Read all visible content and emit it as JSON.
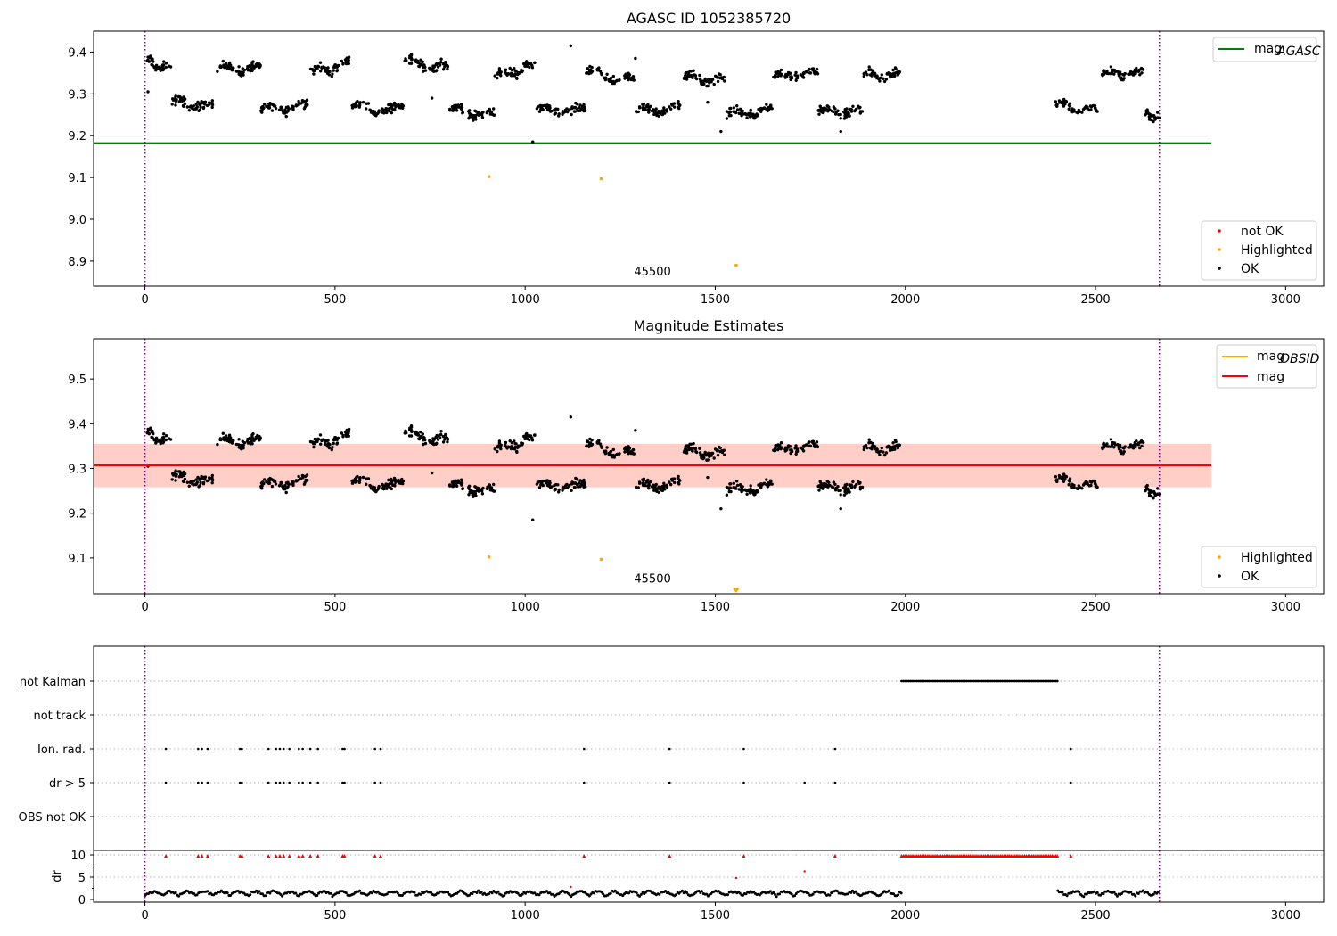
{
  "chart_data": [
    {
      "type": "scatter",
      "title": "AGASC ID 1052385720",
      "xlim": [
        -135,
        3100
      ],
      "ylim": [
        8.84,
        9.45
      ],
      "xticks": [
        0,
        500,
        1000,
        1500,
        2000,
        2500,
        3000
      ],
      "yticks": [
        8.9,
        9.0,
        9.1,
        9.2,
        9.3,
        9.4
      ],
      "vlines": [
        0,
        2668
      ],
      "hlines": [
        {
          "name": "mag_AGASC",
          "y": 9.182,
          "x_end": 2805,
          "color": "#008000"
        }
      ],
      "annotation": {
        "text": "45500",
        "x": 1335,
        "y": 8.866
      },
      "clusters": [
        {
          "x0": 0,
          "x1": 70,
          "y0": 9.375,
          "y1": 9.36,
          "n": 40
        },
        {
          "x0": 70,
          "x1": 180,
          "y0": 9.28,
          "y1": 9.27,
          "n": 60
        },
        {
          "x0": 190,
          "x1": 305,
          "y0": 9.36,
          "y1": 9.36,
          "n": 65
        },
        {
          "x0": 305,
          "x1": 430,
          "y0": 9.265,
          "y1": 9.27,
          "n": 65
        },
        {
          "x0": 435,
          "x1": 540,
          "y0": 9.35,
          "y1": 9.375,
          "n": 60
        },
        {
          "x0": 540,
          "x1": 680,
          "y0": 9.27,
          "y1": 9.26,
          "n": 75
        },
        {
          "x0": 680,
          "x1": 800,
          "y0": 9.38,
          "y1": 9.36,
          "n": 65
        },
        {
          "x0": 800,
          "x1": 920,
          "y0": 9.26,
          "y1": 9.25,
          "n": 65
        },
        {
          "x0": 920,
          "x1": 1030,
          "y0": 9.34,
          "y1": 9.37,
          "n": 60
        },
        {
          "x0": 1030,
          "x1": 1160,
          "y0": 9.26,
          "y1": 9.26,
          "n": 70
        },
        {
          "x0": 1160,
          "x1": 1290,
          "y0": 9.35,
          "y1": 9.33,
          "n": 70
        },
        {
          "x0": 1290,
          "x1": 1410,
          "y0": 9.26,
          "y1": 9.265,
          "n": 65
        },
        {
          "x0": 1415,
          "x1": 1530,
          "y0": 9.34,
          "y1": 9.33,
          "n": 60
        },
        {
          "x0": 1530,
          "x1": 1650,
          "y0": 9.25,
          "y1": 9.26,
          "n": 65
        },
        {
          "x0": 1650,
          "x1": 1770,
          "y0": 9.34,
          "y1": 9.35,
          "n": 60
        },
        {
          "x0": 1770,
          "x1": 1890,
          "y0": 9.26,
          "y1": 9.255,
          "n": 65
        },
        {
          "x0": 1890,
          "x1": 1985,
          "y0": 9.345,
          "y1": 9.345,
          "n": 55
        },
        {
          "x0": 2395,
          "x1": 2505,
          "y0": 9.275,
          "y1": 9.26,
          "n": 55
        },
        {
          "x0": 2515,
          "x1": 2630,
          "y0": 9.345,
          "y1": 9.35,
          "n": 60
        },
        {
          "x0": 2630,
          "x1": 2668,
          "y0": 9.25,
          "y1": 9.24,
          "n": 25
        }
      ],
      "outliers": [
        {
          "x": 8,
          "y": 9.305
        },
        {
          "x": 1020,
          "y": 9.185
        },
        {
          "x": 1120,
          "y": 9.415
        },
        {
          "x": 1290,
          "y": 9.385
        },
        {
          "x": 1515,
          "y": 9.21
        },
        {
          "x": 1830,
          "y": 9.21
        },
        {
          "x": 755,
          "y": 9.29
        },
        {
          "x": 1480,
          "y": 9.28
        }
      ],
      "highlighted": [
        {
          "x": 905,
          "y": 9.102
        },
        {
          "x": 1200,
          "y": 9.097
        },
        {
          "x": 1555,
          "y": 8.89
        }
      ],
      "series": [
        {
          "name": "not OK",
          "color": "#ff0000"
        },
        {
          "name": "Highlighted",
          "color": "#ffa500"
        },
        {
          "name": "OK",
          "color": "#000000"
        }
      ],
      "legend": {
        "position": "top-right",
        "line_label": "mag",
        "line_sub": "AGASC",
        "line_color": "#008000"
      }
    },
    {
      "type": "scatter",
      "title": "Magnitude Estimates",
      "xlim": [
        -135,
        3100
      ],
      "ylim": [
        9.02,
        9.59
      ],
      "xticks": [
        0,
        500,
        1000,
        1500,
        2000,
        2500,
        3000
      ],
      "yticks": [
        9.1,
        9.2,
        9.3,
        9.4,
        9.5
      ],
      "vlines": [
        0,
        2668
      ],
      "mag": {
        "y": 9.307,
        "band": [
          9.258,
          9.355
        ],
        "x_end": 2805,
        "color": "#ff0000"
      },
      "mag_obsid": {
        "color": "#ffa500"
      },
      "annotation": {
        "text": "45500",
        "x": 1335,
        "y": 9.045
      },
      "highlighted": [
        {
          "x": 905,
          "y": 9.102
        },
        {
          "x": 1200,
          "y": 9.097
        }
      ],
      "marker_at_edge": {
        "x": 1555,
        "y": 9.026
      },
      "series": [
        {
          "name": "Highlighted",
          "color": "#ffa500"
        },
        {
          "name": "OK",
          "color": "#000000"
        }
      ],
      "legend": {
        "position": "top-right",
        "line1_label": "mag",
        "line1_sub": "OBSID",
        "line2_label": "mag"
      }
    },
    {
      "type": "scatter",
      "title": "",
      "xlim": [
        -135,
        3100
      ],
      "categories": [
        "not Kalman",
        "not track",
        "Ion. rad.",
        "dr > 5",
        "OBS not OK"
      ],
      "flag_spans": [
        {
          "category": "not Kalman",
          "x0": 1990,
          "x1": 2400
        }
      ],
      "flag_points": {
        "Ion. rad.": [
          55,
          140,
          150,
          165,
          250,
          255,
          325,
          345,
          355,
          365,
          380,
          405,
          415,
          435,
          455,
          520,
          525,
          605,
          620,
          1155,
          1380,
          1575,
          1815,
          2435
        ],
        "dr > 5": [
          55,
          140,
          150,
          165,
          250,
          255,
          325,
          345,
          355,
          365,
          380,
          405,
          415,
          435,
          455,
          520,
          525,
          605,
          620,
          1155,
          1380,
          1575,
          1735,
          1815,
          2435
        ]
      },
      "dr": {
        "ylim": [
          -0.6,
          11
        ],
        "yticks": [
          0,
          5,
          10
        ],
        "ylabel": "dr",
        "high_points": [
          55,
          140,
          150,
          165,
          250,
          255,
          325,
          345,
          355,
          365,
          380,
          405,
          415,
          435,
          455,
          520,
          525,
          605,
          620,
          1155,
          1380,
          1575,
          1815,
          2435
        ],
        "mid_points": [
          {
            "x": 1120,
            "y": 2.8
          },
          {
            "x": 1555,
            "y": 4.8
          },
          {
            "x": 1735,
            "y": 6.3
          }
        ],
        "gap": [
          1990,
          2400
        ]
      },
      "vlines": [
        0,
        2668
      ],
      "xticks": [
        0,
        500,
        1000,
        1500,
        2000,
        2500,
        3000
      ]
    }
  ]
}
